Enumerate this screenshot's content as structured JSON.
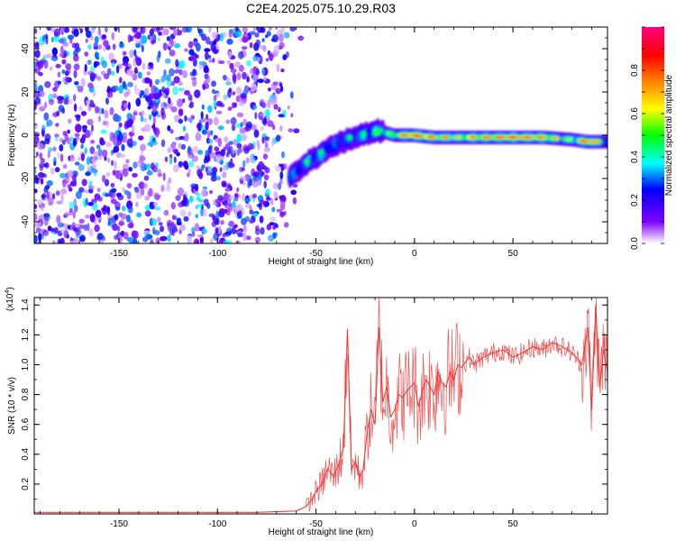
{
  "title": "C2E4.2025.075.10.29.R03",
  "chart_data": [
    {
      "type": "heatmap",
      "xlabel": "Height of straight line (km)",
      "ylabel": "Frequency (Hz)",
      "xlim": [
        -193,
        98
      ],
      "ylim": [
        -50,
        50
      ],
      "xticks": [
        -150,
        -100,
        -50,
        0,
        50
      ],
      "yticks": [
        -40,
        -20,
        0,
        20,
        40
      ],
      "grid": false,
      "colorbar": {
        "label": "Normalized spectral amplitude",
        "range": [
          0,
          1
        ],
        "ticks": [
          0.0,
          0.2,
          0.4,
          0.6,
          0.8
        ],
        "tick_labels": [
          "0.0",
          "0.2",
          "0.4",
          "0.6",
          "0.8"
        ],
        "colors": [
          "#ffffff",
          "#8000ff",
          "#0000ff",
          "#00ffff",
          "#00ff00",
          "#ffff00",
          "#ff8000",
          "#ff0000",
          "#ff0080"
        ]
      },
      "noise_region": {
        "x": [
          -193,
          -57
        ],
        "amplitude": [
          0.0,
          0.35
        ]
      },
      "ridge": [
        {
          "x": -63,
          "y": -19,
          "amp": 0.4
        },
        {
          "x": -55,
          "y": -13,
          "amp": 0.45
        },
        {
          "x": -48,
          "y": -9,
          "amp": 0.5
        },
        {
          "x": -40,
          "y": -4,
          "amp": 0.45
        },
        {
          "x": -33,
          "y": -2,
          "amp": 0.45
        },
        {
          "x": -25,
          "y": 1,
          "amp": 0.5
        },
        {
          "x": -18,
          "y": 2,
          "amp": 0.55
        },
        {
          "x": -10,
          "y": 0,
          "amp": 0.65
        },
        {
          "x": -1,
          "y": 0,
          "amp": 0.9
        },
        {
          "x": 10,
          "y": -1,
          "amp": 0.75
        },
        {
          "x": 20,
          "y": -1,
          "amp": 0.7
        },
        {
          "x": 35,
          "y": -1,
          "amp": 0.8
        },
        {
          "x": 50,
          "y": -1,
          "amp": 0.85
        },
        {
          "x": 65,
          "y": -1,
          "amp": 0.8
        },
        {
          "x": 80,
          "y": -2,
          "amp": 0.6
        },
        {
          "x": 88,
          "y": -3,
          "amp": 0.9
        },
        {
          "x": 98,
          "y": -3,
          "amp": 0.5
        }
      ]
    },
    {
      "type": "line",
      "xlabel": "Height of straight line (km)",
      "ylabel": "SNR (10 * v/v)",
      "yscale_label": "(x10",
      "yscale_exponent": "4",
      "yscale_suffix": ")",
      "xlim": [
        -193,
        98
      ],
      "ylim": [
        0,
        1.45
      ],
      "xticks": [
        -150,
        -100,
        -50,
        0,
        50
      ],
      "yticks": [
        0.2,
        0.4,
        0.6,
        0.8,
        1.0,
        1.2,
        1.4
      ],
      "ytick_labels": [
        "0.2",
        "0.4",
        "0.6",
        "0.8",
        "1.0",
        "1.2",
        "1.4"
      ],
      "grid": false,
      "series": [
        {
          "color": "#ee3333",
          "x": [
            -193,
            -180,
            -160,
            -140,
            -120,
            -100,
            -80,
            -60,
            -55,
            -52,
            -50,
            -47,
            -44,
            -41,
            -38,
            -36,
            -34,
            -32,
            -30,
            -28,
            -26,
            -24,
            -22,
            -20,
            -18,
            -16,
            -14,
            -12,
            -10,
            -8,
            -6,
            -4,
            -2,
            0,
            2,
            4,
            6,
            8,
            10,
            12,
            14,
            16,
            18,
            20,
            22,
            24,
            26,
            28,
            30,
            35,
            40,
            45,
            50,
            55,
            60,
            65,
            70,
            75,
            80,
            85,
            88,
            90,
            92,
            94,
            96,
            98
          ],
          "y": [
            0.01,
            0.01,
            0.01,
            0.01,
            0.01,
            0.01,
            0.01,
            0.02,
            0.05,
            0.1,
            0.15,
            0.2,
            0.3,
            0.25,
            0.35,
            0.45,
            1.24,
            0.3,
            0.35,
            0.25,
            0.3,
            0.55,
            0.7,
            0.6,
            1.25,
            0.75,
            0.85,
            0.65,
            0.7,
            0.8,
            0.78,
            0.82,
            0.85,
            0.88,
            0.72,
            0.82,
            0.9,
            0.85,
            0.8,
            0.95,
            0.88,
            0.85,
            0.95,
            0.9,
            1.0,
            0.98,
            1.02,
            1.05,
            1.0,
            1.05,
            1.08,
            1.1,
            1.05,
            1.08,
            1.12,
            1.1,
            1.15,
            1.12,
            1.08,
            1.0,
            1.25,
            0.7,
            1.4,
            0.85,
            1.1,
            0.95
          ]
        }
      ]
    }
  ]
}
